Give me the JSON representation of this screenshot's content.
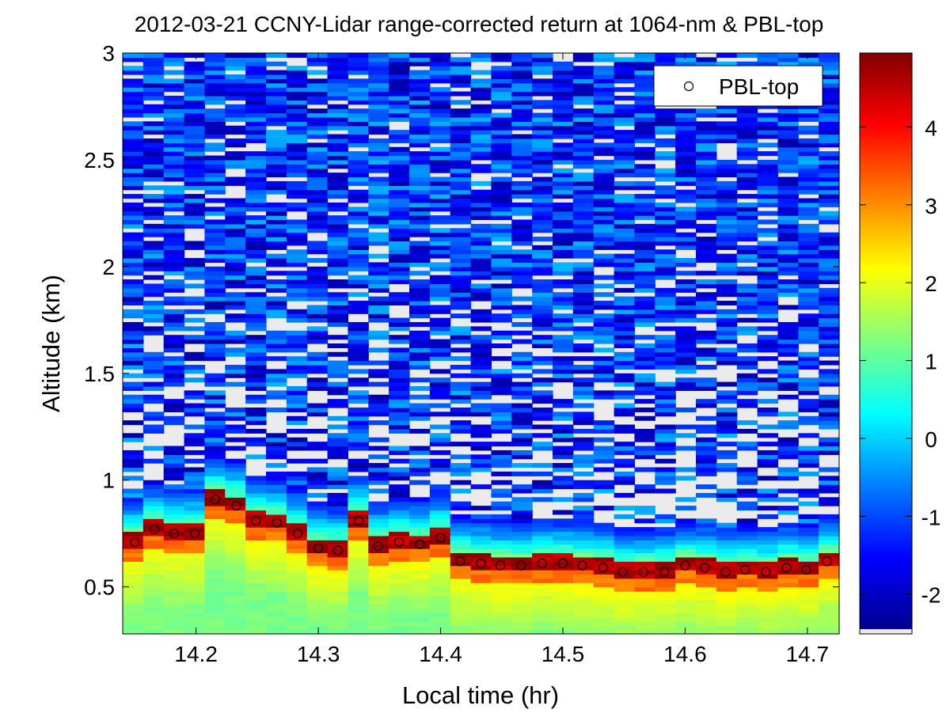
{
  "chart_data": {
    "type": "heatmap",
    "title": "2012-03-21 CCNY-Lidar range-corrected return at 1064-nm & PBL-top",
    "xlabel": "Local time (hr)",
    "ylabel": "Altitude (km)",
    "xlim": [
      14.14,
      14.726
    ],
    "ylim": [
      0.28,
      3.0
    ],
    "xticks": [
      14.2,
      14.3,
      14.4,
      14.5,
      14.6,
      14.7
    ],
    "yticks": [
      0.5,
      1,
      1.5,
      2,
      2.5,
      3
    ],
    "colorbar": {
      "clim": [
        -2.45,
        4.95
      ],
      "ticks": [
        -2,
        -1,
        0,
        1,
        2,
        3,
        4
      ],
      "colormap": "jet"
    },
    "legend": {
      "label": "PBL-top",
      "marker": "circle",
      "location": "top-right"
    },
    "colors": {
      "missing": "#ebebeb",
      "axis": "#000000",
      "background": "#ffffff"
    },
    "series": [
      {
        "name": "PBL-top",
        "x": [
          14.15,
          14.166,
          14.182,
          14.199,
          14.216,
          14.233,
          14.249,
          14.266,
          14.283,
          14.3,
          14.316,
          14.333,
          14.349,
          14.366,
          14.383,
          14.4,
          14.416,
          14.433,
          14.449,
          14.466,
          14.483,
          14.5,
          14.516,
          14.533,
          14.549,
          14.566,
          14.583,
          14.6,
          14.616,
          14.633,
          14.649,
          14.666,
          14.683,
          14.699,
          14.716
        ],
        "y": [
          0.71,
          0.77,
          0.75,
          0.75,
          0.91,
          0.88,
          0.81,
          0.8,
          0.75,
          0.68,
          0.67,
          0.81,
          0.69,
          0.71,
          0.7,
          0.73,
          0.62,
          0.61,
          0.6,
          0.6,
          0.61,
          0.61,
          0.6,
          0.59,
          0.57,
          0.57,
          0.57,
          0.6,
          0.59,
          0.57,
          0.58,
          0.57,
          0.59,
          0.58,
          0.62
        ]
      }
    ]
  }
}
